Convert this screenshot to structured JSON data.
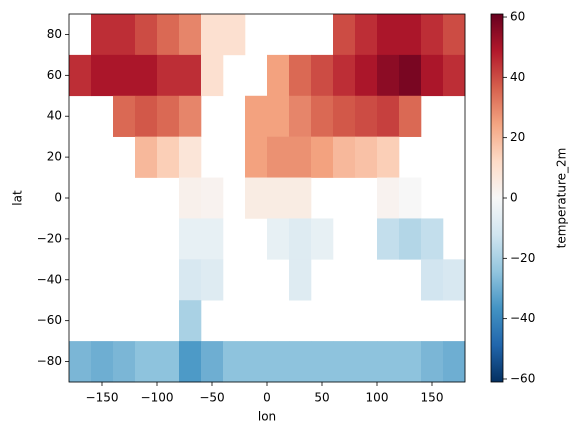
{
  "chart_data": {
    "type": "heatmap",
    "xlabel": "lon",
    "ylabel": "lat",
    "colorbar_label": "temperature_2m",
    "xbins": [
      -180,
      -160,
      -140,
      -120,
      -100,
      -80,
      -60,
      -40,
      -20,
      0,
      20,
      40,
      60,
      80,
      100,
      120,
      140,
      160,
      180
    ],
    "ybins": [
      90,
      70,
      50,
      30,
      10,
      -10,
      -30,
      -50,
      -70,
      -90
    ],
    "z": [
      [
        null,
        45,
        45,
        40,
        35,
        30,
        10,
        10,
        null,
        null,
        null,
        null,
        40,
        45,
        50,
        50,
        45,
        40
      ],
      [
        45,
        50,
        50,
        50,
        45,
        45,
        10,
        null,
        null,
        25,
        35,
        40,
        45,
        50,
        55,
        58,
        50,
        45
      ],
      [
        null,
        null,
        35,
        38,
        35,
        30,
        null,
        null,
        25,
        25,
        30,
        35,
        38,
        40,
        42,
        35,
        null,
        null
      ],
      [
        null,
        null,
        null,
        20,
        15,
        8,
        null,
        null,
        25,
        28,
        28,
        25,
        20,
        18,
        15,
        null,
        null,
        null
      ],
      [
        null,
        null,
        null,
        null,
        null,
        3,
        2,
        null,
        5,
        5,
        5,
        null,
        null,
        null,
        2,
        0,
        null,
        null
      ],
      [
        null,
        null,
        null,
        null,
        null,
        -5,
        -5,
        null,
        null,
        -5,
        -8,
        -5,
        null,
        null,
        -15,
        -18,
        -15,
        null
      ],
      [
        null,
        null,
        null,
        null,
        null,
        -10,
        -8,
        null,
        null,
        null,
        -8,
        null,
        null,
        null,
        null,
        null,
        -12,
        -10
      ],
      [
        null,
        null,
        null,
        null,
        null,
        -20,
        null,
        null,
        null,
        null,
        null,
        null,
        null,
        null,
        null,
        null,
        null,
        null
      ],
      [
        -28,
        -30,
        -28,
        -25,
        -25,
        -35,
        -30,
        -25,
        -25,
        -25,
        -25,
        -25,
        -25,
        -25,
        -25,
        -25,
        -28,
        -30
      ]
    ],
    "colors": [
      "#053061",
      "#2166ac",
      "#4393c3",
      "#92c5de",
      "#d1e5f0",
      "#f7f7f7",
      "#fddbc7",
      "#f4a582",
      "#d6604d",
      "#b2182b",
      "#67001f"
    ],
    "xlim": [
      -180,
      180
    ],
    "ylim": [
      -90,
      90
    ],
    "zlim": [
      -61,
      61
    ],
    "xticks": [
      {
        "value": -150,
        "label": "−150"
      },
      {
        "value": -100,
        "label": "−100"
      },
      {
        "value": -50,
        "label": "−50"
      },
      0,
      50,
      100,
      150
    ],
    "yticks": [
      {
        "value": -80,
        "label": "−80"
      },
      {
        "value": -60,
        "label": "−60"
      },
      {
        "value": -40,
        "label": "−40"
      },
      {
        "value": -20,
        "label": "−20"
      },
      0,
      20,
      40,
      60,
      80
    ],
    "zticks": [
      {
        "value": -60,
        "label": "−60"
      },
      {
        "value": -40,
        "label": "−40"
      },
      {
        "value": -20,
        "label": "−20"
      },
      0,
      20,
      40,
      60
    ]
  }
}
